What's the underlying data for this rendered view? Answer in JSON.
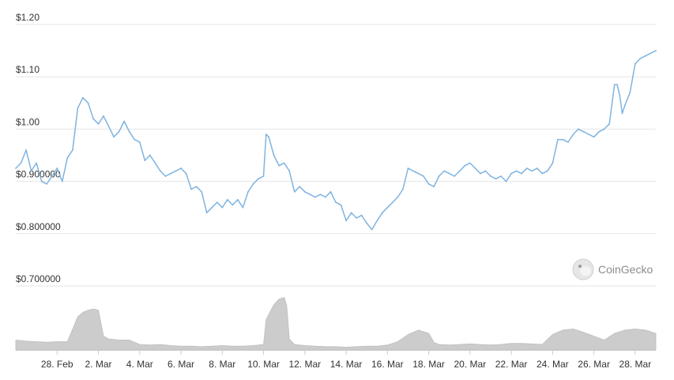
{
  "chart_data": {
    "type": "line",
    "title": "",
    "xlabel": "",
    "ylabel": "",
    "ylim": [
      0.7,
      1.2
    ],
    "y_ticks": [
      {
        "value": 1.2,
        "label": "$1.20"
      },
      {
        "value": 1.1,
        "label": "$1.10"
      },
      {
        "value": 1.0,
        "label": "$1.00"
      },
      {
        "value": 0.9,
        "label": "$0.900000"
      },
      {
        "value": 0.8,
        "label": "$0.800000"
      },
      {
        "value": 0.7,
        "label": "$0.700000"
      }
    ],
    "x_ticks": [
      {
        "date": "2021-02-28",
        "label": "28. Feb"
      },
      {
        "date": "2021-03-02",
        "label": "2. Mar"
      },
      {
        "date": "2021-03-04",
        "label": "4. Mar"
      },
      {
        "date": "2021-03-06",
        "label": "6. Mar"
      },
      {
        "date": "2021-03-08",
        "label": "8. Mar"
      },
      {
        "date": "2021-03-10",
        "label": "10. Mar"
      },
      {
        "date": "2021-03-12",
        "label": "12. Mar"
      },
      {
        "date": "2021-03-14",
        "label": "14. Mar"
      },
      {
        "date": "2021-03-16",
        "label": "16. Mar"
      },
      {
        "date": "2021-03-18",
        "label": "18. Mar"
      },
      {
        "date": "2021-03-20",
        "label": "20. Mar"
      },
      {
        "date": "2021-03-22",
        "label": "22. Mar"
      },
      {
        "date": "2021-03-24",
        "label": "24. Mar"
      },
      {
        "date": "2021-03-26",
        "label": "26. Mar"
      },
      {
        "date": "2021-03-28",
        "label": "28. Mar"
      }
    ],
    "x_range": [
      "2021-02-26T00:00",
      "2021-03-29T00:00"
    ],
    "grid": true,
    "legend": "none",
    "line_color": "#7fb3e0",
    "volume_color": "#cccccc",
    "series": [
      {
        "points": [
          [
            "2021-02-26T00:00",
            0.925
          ],
          [
            "2021-02-26T06:00",
            0.935
          ],
          [
            "2021-02-26T12:00",
            0.96
          ],
          [
            "2021-02-26T18:00",
            0.92
          ],
          [
            "2021-02-27T00:00",
            0.935
          ],
          [
            "2021-02-27T06:00",
            0.9
          ],
          [
            "2021-02-27T12:00",
            0.895
          ],
          [
            "2021-02-27T18:00",
            0.91
          ],
          [
            "2021-02-28T00:00",
            0.925
          ],
          [
            "2021-02-28T06:00",
            0.9
          ],
          [
            "2021-02-28T12:00",
            0.945
          ],
          [
            "2021-02-28T18:00",
            0.96
          ],
          [
            "2021-03-01T00:00",
            1.04
          ],
          [
            "2021-03-01T06:00",
            1.06
          ],
          [
            "2021-03-01T12:00",
            1.05
          ],
          [
            "2021-03-01T18:00",
            1.02
          ],
          [
            "2021-03-02T00:00",
            1.01
          ],
          [
            "2021-03-02T06:00",
            1.025
          ],
          [
            "2021-03-02T12:00",
            1.005
          ],
          [
            "2021-03-02T18:00",
            0.985
          ],
          [
            "2021-03-03T00:00",
            0.995
          ],
          [
            "2021-03-03T06:00",
            1.015
          ],
          [
            "2021-03-03T12:00",
            0.995
          ],
          [
            "2021-03-03T18:00",
            0.98
          ],
          [
            "2021-03-04T00:00",
            0.975
          ],
          [
            "2021-03-04T06:00",
            0.94
          ],
          [
            "2021-03-04T12:00",
            0.95
          ],
          [
            "2021-03-04T18:00",
            0.935
          ],
          [
            "2021-03-05T00:00",
            0.92
          ],
          [
            "2021-03-05T06:00",
            0.91
          ],
          [
            "2021-03-05T12:00",
            0.915
          ],
          [
            "2021-03-05T18:00",
            0.92
          ],
          [
            "2021-03-06T00:00",
            0.925
          ],
          [
            "2021-03-06T06:00",
            0.915
          ],
          [
            "2021-03-06T12:00",
            0.885
          ],
          [
            "2021-03-06T18:00",
            0.89
          ],
          [
            "2021-03-07T00:00",
            0.88
          ],
          [
            "2021-03-07T06:00",
            0.84
          ],
          [
            "2021-03-07T12:00",
            0.85
          ],
          [
            "2021-03-07T18:00",
            0.86
          ],
          [
            "2021-03-08T00:00",
            0.85
          ],
          [
            "2021-03-08T06:00",
            0.865
          ],
          [
            "2021-03-08T12:00",
            0.855
          ],
          [
            "2021-03-08T18:00",
            0.865
          ],
          [
            "2021-03-09T00:00",
            0.85
          ],
          [
            "2021-03-09T06:00",
            0.88
          ],
          [
            "2021-03-09T12:00",
            0.895
          ],
          [
            "2021-03-09T18:00",
            0.905
          ],
          [
            "2021-03-10T00:00",
            0.91
          ],
          [
            "2021-03-10T03:00",
            0.99
          ],
          [
            "2021-03-10T06:00",
            0.985
          ],
          [
            "2021-03-10T12:00",
            0.95
          ],
          [
            "2021-03-10T18:00",
            0.93
          ],
          [
            "2021-03-11T00:00",
            0.935
          ],
          [
            "2021-03-11T06:00",
            0.92
          ],
          [
            "2021-03-11T12:00",
            0.88
          ],
          [
            "2021-03-11T18:00",
            0.89
          ],
          [
            "2021-03-12T00:00",
            0.88
          ],
          [
            "2021-03-12T06:00",
            0.875
          ],
          [
            "2021-03-12T12:00",
            0.87
          ],
          [
            "2021-03-12T18:00",
            0.875
          ],
          [
            "2021-03-13T00:00",
            0.87
          ],
          [
            "2021-03-13T06:00",
            0.88
          ],
          [
            "2021-03-13T12:00",
            0.86
          ],
          [
            "2021-03-13T18:00",
            0.855
          ],
          [
            "2021-03-14T00:00",
            0.825
          ],
          [
            "2021-03-14T06:00",
            0.84
          ],
          [
            "2021-03-14T12:00",
            0.83
          ],
          [
            "2021-03-14T18:00",
            0.835
          ],
          [
            "2021-03-15T00:00",
            0.82
          ],
          [
            "2021-03-15T06:00",
            0.808
          ],
          [
            "2021-03-15T12:00",
            0.825
          ],
          [
            "2021-03-15T18:00",
            0.84
          ],
          [
            "2021-03-16T00:00",
            0.85
          ],
          [
            "2021-03-16T06:00",
            0.86
          ],
          [
            "2021-03-16T12:00",
            0.87
          ],
          [
            "2021-03-16T18:00",
            0.885
          ],
          [
            "2021-03-17T00:00",
            0.925
          ],
          [
            "2021-03-17T06:00",
            0.92
          ],
          [
            "2021-03-17T12:00",
            0.915
          ],
          [
            "2021-03-17T18:00",
            0.91
          ],
          [
            "2021-03-18T00:00",
            0.895
          ],
          [
            "2021-03-18T06:00",
            0.89
          ],
          [
            "2021-03-18T12:00",
            0.91
          ],
          [
            "2021-03-18T18:00",
            0.92
          ],
          [
            "2021-03-19T00:00",
            0.915
          ],
          [
            "2021-03-19T06:00",
            0.91
          ],
          [
            "2021-03-19T12:00",
            0.92
          ],
          [
            "2021-03-19T18:00",
            0.93
          ],
          [
            "2021-03-20T00:00",
            0.935
          ],
          [
            "2021-03-20T06:00",
            0.925
          ],
          [
            "2021-03-20T12:00",
            0.915
          ],
          [
            "2021-03-20T18:00",
            0.92
          ],
          [
            "2021-03-21T00:00",
            0.91
          ],
          [
            "2021-03-21T06:00",
            0.905
          ],
          [
            "2021-03-21T12:00",
            0.91
          ],
          [
            "2021-03-21T18:00",
            0.9
          ],
          [
            "2021-03-22T00:00",
            0.915
          ],
          [
            "2021-03-22T06:00",
            0.92
          ],
          [
            "2021-03-22T12:00",
            0.915
          ],
          [
            "2021-03-22T18:00",
            0.925
          ],
          [
            "2021-03-23T00:00",
            0.92
          ],
          [
            "2021-03-23T06:00",
            0.925
          ],
          [
            "2021-03-23T12:00",
            0.915
          ],
          [
            "2021-03-23T18:00",
            0.92
          ],
          [
            "2021-03-24T00:00",
            0.935
          ],
          [
            "2021-03-24T06:00",
            0.98
          ],
          [
            "2021-03-24T12:00",
            0.98
          ],
          [
            "2021-03-24T18:00",
            0.975
          ],
          [
            "2021-03-25T00:00",
            0.99
          ],
          [
            "2021-03-25T06:00",
            1.0
          ],
          [
            "2021-03-25T12:00",
            0.995
          ],
          [
            "2021-03-25T18:00",
            0.99
          ],
          [
            "2021-03-26T00:00",
            0.985
          ],
          [
            "2021-03-26T06:00",
            0.995
          ],
          [
            "2021-03-26T12:00",
            1.0
          ],
          [
            "2021-03-26T18:00",
            1.01
          ],
          [
            "2021-03-27T00:00",
            1.085
          ],
          [
            "2021-03-27T03:00",
            1.085
          ],
          [
            "2021-03-27T06:00",
            1.065
          ],
          [
            "2021-03-27T09:00",
            1.03
          ],
          [
            "2021-03-27T12:00",
            1.045
          ],
          [
            "2021-03-27T18:00",
            1.07
          ],
          [
            "2021-03-28T00:00",
            1.125
          ],
          [
            "2021-03-28T06:00",
            1.135
          ],
          [
            "2021-03-28T12:00",
            1.14
          ],
          [
            "2021-03-28T18:00",
            1.145
          ],
          [
            "2021-03-29T00:00",
            1.15
          ]
        ]
      }
    ],
    "volume": {
      "max": 1.0,
      "points": [
        [
          "2021-02-26T00:00",
          0.18
        ],
        [
          "2021-02-26T12:00",
          0.16
        ],
        [
          "2021-02-27T00:00",
          0.15
        ],
        [
          "2021-02-27T12:00",
          0.14
        ],
        [
          "2021-02-28T00:00",
          0.15
        ],
        [
          "2021-02-28T12:00",
          0.15
        ],
        [
          "2021-03-01T00:00",
          0.6
        ],
        [
          "2021-03-01T06:00",
          0.68
        ],
        [
          "2021-03-01T12:00",
          0.72
        ],
        [
          "2021-03-01T18:00",
          0.74
        ],
        [
          "2021-03-02T00:00",
          0.72
        ],
        [
          "2021-03-02T06:00",
          0.25
        ],
        [
          "2021-03-02T12:00",
          0.2
        ],
        [
          "2021-03-03T00:00",
          0.18
        ],
        [
          "2021-03-03T12:00",
          0.18
        ],
        [
          "2021-03-04T00:00",
          0.1
        ],
        [
          "2021-03-04T12:00",
          0.09
        ],
        [
          "2021-03-05T00:00",
          0.1
        ],
        [
          "2021-03-05T12:00",
          0.08
        ],
        [
          "2021-03-06T00:00",
          0.07
        ],
        [
          "2021-03-06T12:00",
          0.07
        ],
        [
          "2021-03-07T00:00",
          0.06
        ],
        [
          "2021-03-07T12:00",
          0.07
        ],
        [
          "2021-03-08T00:00",
          0.08
        ],
        [
          "2021-03-08T12:00",
          0.07
        ],
        [
          "2021-03-09T00:00",
          0.07
        ],
        [
          "2021-03-09T12:00",
          0.08
        ],
        [
          "2021-03-10T00:00",
          0.1
        ],
        [
          "2021-03-10T03:00",
          0.55
        ],
        [
          "2021-03-10T12:00",
          0.82
        ],
        [
          "2021-03-10T18:00",
          0.92
        ],
        [
          "2021-03-11T00:00",
          0.95
        ],
        [
          "2021-03-11T03:00",
          0.8
        ],
        [
          "2021-03-11T06:00",
          0.2
        ],
        [
          "2021-03-11T12:00",
          0.1
        ],
        [
          "2021-03-12T00:00",
          0.08
        ],
        [
          "2021-03-12T12:00",
          0.07
        ],
        [
          "2021-03-13T00:00",
          0.06
        ],
        [
          "2021-03-13T12:00",
          0.06
        ],
        [
          "2021-03-14T00:00",
          0.05
        ],
        [
          "2021-03-14T12:00",
          0.06
        ],
        [
          "2021-03-15T00:00",
          0.07
        ],
        [
          "2021-03-15T12:00",
          0.07
        ],
        [
          "2021-03-16T00:00",
          0.09
        ],
        [
          "2021-03-16T12:00",
          0.15
        ],
        [
          "2021-03-17T00:00",
          0.28
        ],
        [
          "2021-03-17T12:00",
          0.36
        ],
        [
          "2021-03-18T00:00",
          0.3
        ],
        [
          "2021-03-18T06:00",
          0.14
        ],
        [
          "2021-03-18T12:00",
          0.1
        ],
        [
          "2021-03-19T00:00",
          0.09
        ],
        [
          "2021-03-19T12:00",
          0.1
        ],
        [
          "2021-03-20T00:00",
          0.11
        ],
        [
          "2021-03-20T12:00",
          0.1
        ],
        [
          "2021-03-21T00:00",
          0.09
        ],
        [
          "2021-03-21T12:00",
          0.1
        ],
        [
          "2021-03-22T00:00",
          0.12
        ],
        [
          "2021-03-22T12:00",
          0.12
        ],
        [
          "2021-03-23T00:00",
          0.11
        ],
        [
          "2021-03-23T12:00",
          0.1
        ],
        [
          "2021-03-24T00:00",
          0.28
        ],
        [
          "2021-03-24T12:00",
          0.36
        ],
        [
          "2021-03-25T00:00",
          0.38
        ],
        [
          "2021-03-25T12:00",
          0.32
        ],
        [
          "2021-03-26T00:00",
          0.25
        ],
        [
          "2021-03-26T12:00",
          0.18
        ],
        [
          "2021-03-27T00:00",
          0.3
        ],
        [
          "2021-03-27T12:00",
          0.36
        ],
        [
          "2021-03-28T00:00",
          0.38
        ],
        [
          "2021-03-28T12:00",
          0.36
        ],
        [
          "2021-03-29T00:00",
          0.3
        ]
      ]
    }
  },
  "watermark": {
    "text": "CoinGecko",
    "icon": "gecko-logo-icon"
  }
}
